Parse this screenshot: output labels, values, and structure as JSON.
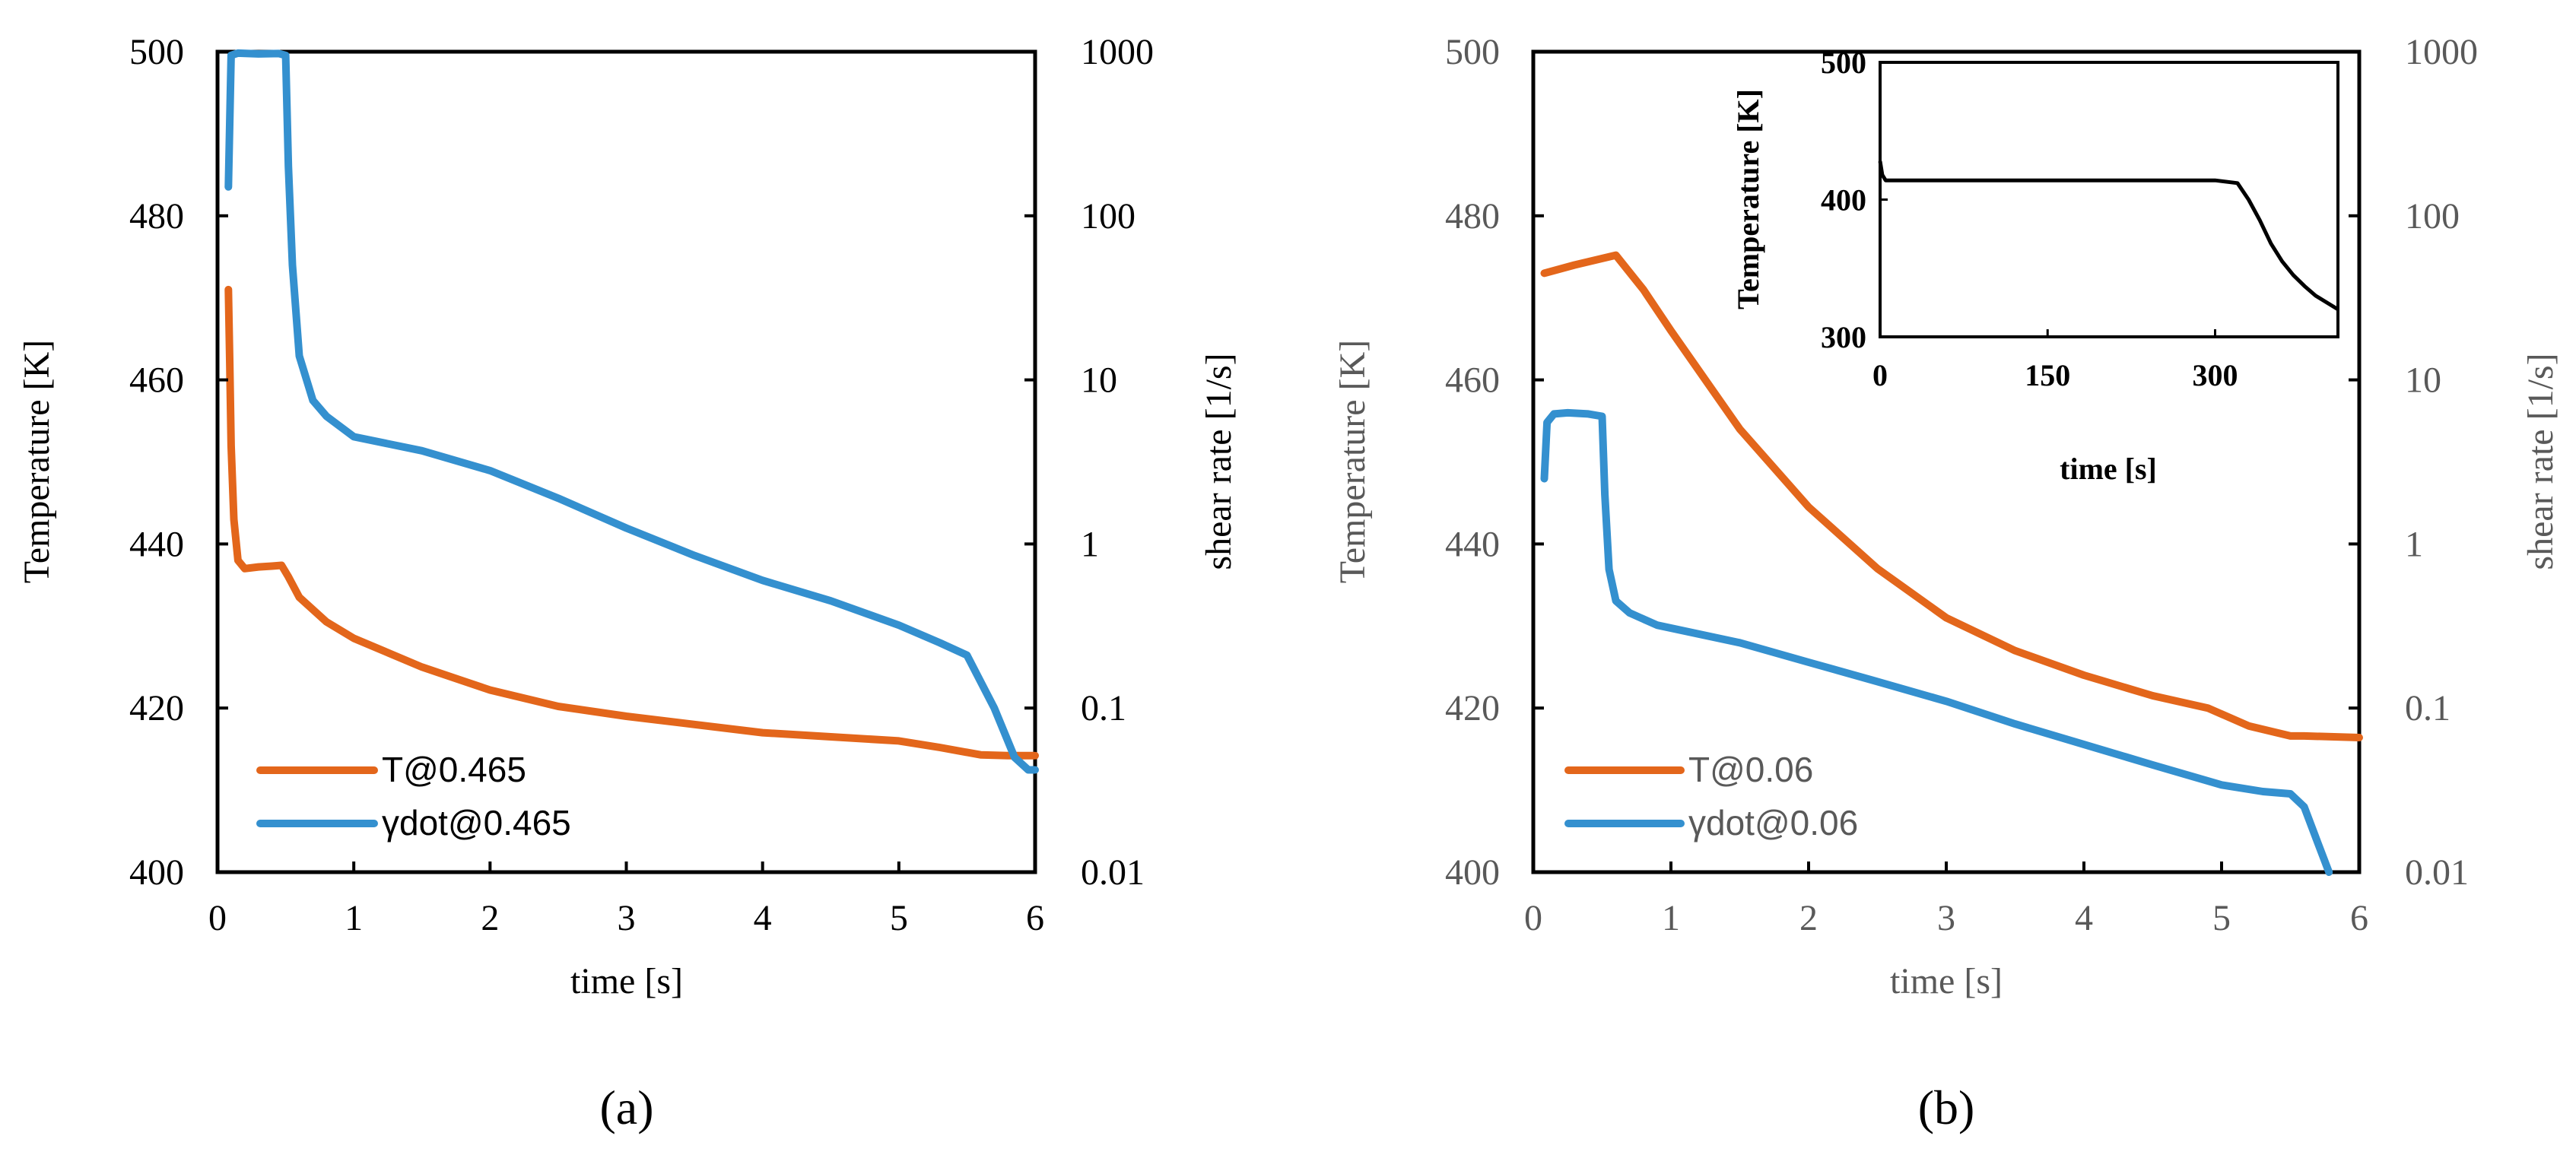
{
  "colors": {
    "temperature": "#E3661B",
    "shear": "#3490CF",
    "inset": "#000000"
  },
  "panels": {
    "a": {
      "label": "(a)"
    },
    "b": {
      "label": "(b)"
    }
  },
  "chart_data": [
    {
      "type": "line",
      "id": "a",
      "xlabel": "time [s]",
      "ylabel": "Temperature [K]",
      "y2label": "shear rate [1/s]",
      "xlim": [
        0,
        6
      ],
      "xticks": [
        0,
        1,
        2,
        3,
        4,
        5,
        6
      ],
      "ylim": [
        400,
        500
      ],
      "yticks": [
        400,
        420,
        440,
        460,
        480,
        500
      ],
      "y2lim": [
        0.01,
        1000
      ],
      "y2scale": "log",
      "y2ticks": [
        0.01,
        0.1,
        1,
        10,
        100,
        1000
      ],
      "y2ticklabels": [
        "0.01",
        "0.1",
        "1",
        "10",
        "100",
        "1000"
      ],
      "legend_position": "bottom-left",
      "series": [
        {
          "name": "T@0.465",
          "axis": "left",
          "color_key": "temperature",
          "x": [
            0.08,
            0.09,
            0.1,
            0.12,
            0.15,
            0.2,
            0.3,
            0.4,
            0.47,
            0.52,
            0.6,
            0.8,
            1.0,
            1.5,
            2.0,
            2.5,
            3.0,
            3.5,
            4.0,
            4.5,
            5.0,
            5.3,
            5.6,
            5.8,
            6.0
          ],
          "y": [
            471,
            462,
            452,
            443,
            438,
            437,
            437.2,
            437.3,
            437.4,
            436,
            433.5,
            430.5,
            428.5,
            425,
            422.2,
            420.2,
            419,
            418,
            417,
            416.5,
            416,
            415.2,
            414.3,
            414.2,
            414.2
          ]
        },
        {
          "name": "γdot@0.465",
          "axis": "right",
          "color_key": "shear",
          "x": [
            0.08,
            0.1,
            0.15,
            0.3,
            0.45,
            0.5,
            0.52,
            0.55,
            0.6,
            0.7,
            0.8,
            1.0,
            1.5,
            2.0,
            2.5,
            3.0,
            3.5,
            4.0,
            4.5,
            5.0,
            5.3,
            5.5,
            5.7,
            5.85,
            5.95,
            6.0
          ],
          "y": [
            150,
            950,
            980,
            970,
            975,
            950,
            200,
            50,
            14,
            7.5,
            6,
            4.5,
            3.7,
            2.8,
            1.9,
            1.25,
            0.85,
            0.6,
            0.45,
            0.32,
            0.25,
            0.21,
            0.1,
            0.05,
            0.042,
            0.042
          ]
        }
      ]
    },
    {
      "type": "line",
      "id": "b",
      "xlabel": "time [s]",
      "ylabel": "Temperature [K]",
      "y2label": "shear rate [1/s]",
      "xlim": [
        0,
        6
      ],
      "xticks": [
        0,
        1,
        2,
        3,
        4,
        5,
        6
      ],
      "ylim": [
        400,
        500
      ],
      "yticks": [
        400,
        420,
        440,
        460,
        480,
        500
      ],
      "y2lim": [
        0.01,
        1000
      ],
      "y2scale": "log",
      "y2ticks": [
        0.01,
        0.1,
        1,
        10,
        100,
        1000
      ],
      "y2ticklabels": [
        "0.01",
        "0.1",
        "1",
        "10",
        "100",
        "1000"
      ],
      "legend_position": "bottom-left",
      "series": [
        {
          "name": "T@0.06",
          "axis": "left",
          "color_key": "temperature",
          "x": [
            0.08,
            0.3,
            0.6,
            0.8,
            1.0,
            1.5,
            2.0,
            2.5,
            3.0,
            3.5,
            4.0,
            4.5,
            4.9,
            5.2,
            5.5,
            5.6,
            6.0
          ],
          "y": [
            473,
            474,
            475.2,
            471,
            466,
            454,
            444.5,
            437,
            431,
            427,
            424,
            421.5,
            420,
            417.8,
            416.6,
            416.6,
            416.4
          ]
        },
        {
          "name": "γdot@0.06",
          "axis": "right",
          "color_key": "shear",
          "x": [
            0.08,
            0.1,
            0.15,
            0.25,
            0.4,
            0.5,
            0.52,
            0.55,
            0.6,
            0.7,
            0.9,
            1.5,
            2.0,
            2.5,
            3.0,
            3.5,
            4.0,
            4.5,
            5.0,
            5.3,
            5.5,
            5.6,
            5.7,
            5.78
          ],
          "y": [
            2.5,
            5.5,
            6.2,
            6.3,
            6.2,
            6.0,
            2.0,
            0.7,
            0.45,
            0.38,
            0.32,
            0.25,
            0.19,
            0.145,
            0.11,
            0.08,
            0.06,
            0.045,
            0.034,
            0.031,
            0.03,
            0.025,
            0.015,
            0.01
          ]
        }
      ],
      "inset": {
        "type": "line",
        "xlabel": "time [s]",
        "ylabel": "Temperature  [K]",
        "xlim": [
          0,
          410
        ],
        "xticks": [
          0,
          150,
          300
        ],
        "ylim": [
          300,
          500
        ],
        "yticks": [
          300,
          400,
          500
        ],
        "series": [
          {
            "name": "inset-temperature",
            "color_key": "inset",
            "x": [
              0,
              2,
              5,
              10,
              50,
              100,
              200,
              300,
              320,
              330,
              340,
              350,
              360,
              370,
              380,
              390,
              400,
              410
            ],
            "y": [
              428,
              418,
              414,
              414,
              414,
              414,
              414,
              414,
              412,
              400,
              385,
              368,
              355,
              345,
              337,
              330,
              325,
              320
            ]
          }
        ]
      }
    }
  ]
}
